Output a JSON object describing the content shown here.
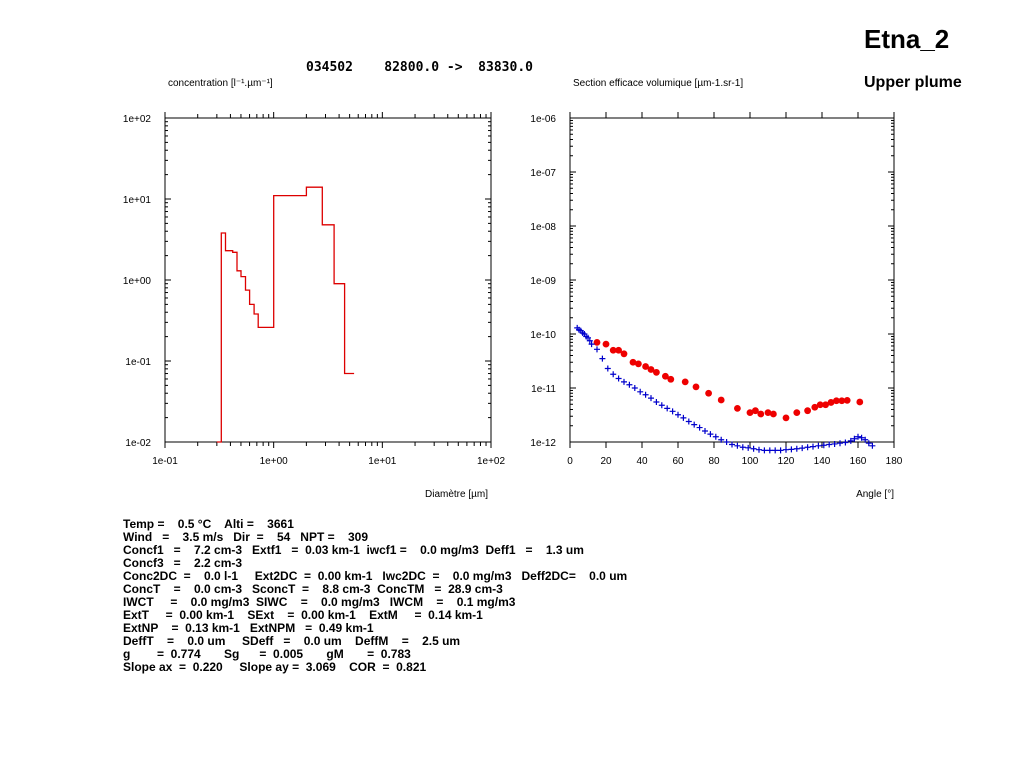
{
  "page": {
    "title": "Etna_2",
    "subtitle": "Upper plume",
    "header": "034502    82800.0 ->  83830.0"
  },
  "chart_data": [
    {
      "type": "line",
      "ytitle": "concentration [l⁻¹.µm⁻¹]",
      "xlabel": "Diamètre [µm]",
      "xscale": "log",
      "yscale": "log",
      "xlim": [
        0.1,
        100
      ],
      "ylim": [
        0.01,
        100
      ],
      "xticks": [
        "1e-01",
        "1e+00",
        "1e+01",
        "1e+02"
      ],
      "yticks": [
        "1e-02",
        "1e-01",
        "1e+00",
        "1e+01",
        "1e+02"
      ],
      "color": "#dd0000",
      "x": [
        0.3,
        0.33,
        0.33,
        0.36,
        0.36,
        0.42,
        0.42,
        0.46,
        0.46,
        0.5,
        0.5,
        0.55,
        0.55,
        0.6,
        0.6,
        0.66,
        0.66,
        0.72,
        0.72,
        1.0,
        1.0,
        2.0,
        2.0,
        2.8,
        2.8,
        3.6,
        3.6,
        4.5,
        4.5,
        5.5
      ],
      "y": [
        0.01,
        0.01,
        3.8,
        3.8,
        2.3,
        2.3,
        2.2,
        2.2,
        1.3,
        1.3,
        1.1,
        1.1,
        0.75,
        0.75,
        0.5,
        0.5,
        0.38,
        0.38,
        0.26,
        0.26,
        11,
        11,
        14,
        14,
        4.8,
        4.8,
        0.9,
        0.9,
        0.07,
        0.07
      ]
    },
    {
      "type": "scatter",
      "ytitle": "Section efficace volumique [µm-1.sr-1]",
      "xlabel": "Angle [°]",
      "xscale": "linear",
      "yscale": "log",
      "xlim": [
        0,
        180
      ],
      "ylim": [
        1e-12,
        1e-06
      ],
      "xticks": [
        "0",
        "20",
        "40",
        "60",
        "80",
        "100",
        "120",
        "140",
        "160",
        "180"
      ],
      "yticks": [
        "1e-12",
        "1e-11",
        "1e-10",
        "1e-09",
        "1e-08",
        "1e-07",
        "1e-06"
      ],
      "series": [
        {
          "marker": "dot",
          "color": "#ee0000",
          "x": [
            15,
            20,
            24,
            27,
            30,
            35,
            38,
            42,
            45,
            48,
            53,
            56,
            64,
            70,
            77,
            84,
            93,
            100,
            103,
            106,
            110,
            113,
            120,
            126,
            132,
            136,
            139,
            142,
            145,
            148,
            151,
            154,
            161
          ],
          "y": [
            7e-11,
            6.5e-11,
            5e-11,
            5e-11,
            4.3e-11,
            3e-11,
            2.8e-11,
            2.5e-11,
            2.2e-11,
            1.95e-11,
            1.65e-11,
            1.45e-11,
            1.3e-11,
            1.05e-11,
            8e-12,
            6e-12,
            4.2e-12,
            3.5e-12,
            3.8e-12,
            3.3e-12,
            3.5e-12,
            3.3e-12,
            2.8e-12,
            3.5e-12,
            3.8e-12,
            4.4e-12,
            4.9e-12,
            4.9e-12,
            5.4e-12,
            5.8e-12,
            5.8e-12,
            5.9e-12,
            5.5e-12
          ]
        },
        {
          "marker": "plus",
          "color": "#0000cc",
          "x": [
            4,
            5,
            6,
            7,
            8,
            9,
            10,
            11,
            12,
            15,
            18,
            21,
            24,
            27,
            30,
            33,
            36,
            39,
            42,
            45,
            48,
            51,
            54,
            57,
            60,
            63,
            66,
            69,
            72,
            75,
            78,
            81,
            84,
            87,
            90,
            93,
            96,
            99,
            102,
            105,
            108,
            111,
            114,
            117,
            120,
            123,
            126,
            129,
            132,
            135,
            138,
            141,
            144,
            147,
            150,
            153,
            156,
            158,
            160,
            162,
            164,
            166,
            168
          ],
          "y": [
            1.3e-10,
            1.2e-10,
            1.15e-10,
            1.05e-10,
            1e-10,
            9e-11,
            8.5e-11,
            7.5e-11,
            6.5e-11,
            5.2e-11,
            3.5e-11,
            2.3e-11,
            1.8e-11,
            1.5e-11,
            1.3e-11,
            1.15e-11,
            1e-11,
            8.5e-12,
            7.5e-12,
            6.5e-12,
            5.5e-12,
            4.8e-12,
            4.2e-12,
            3.7e-12,
            3.2e-12,
            2.8e-12,
            2.4e-12,
            2.1e-12,
            1.85e-12,
            1.6e-12,
            1.4e-12,
            1.25e-12,
            1.1e-12,
            1e-12,
            9e-13,
            8.5e-13,
            8e-13,
            7.8e-13,
            7.5e-13,
            7.2e-13,
            7e-13,
            7e-13,
            7e-13,
            7e-13,
            7.2e-13,
            7.3e-13,
            7.5e-13,
            7.7e-13,
            8e-13,
            8.2e-13,
            8.5e-13,
            8.7e-13,
            9e-13,
            9.2e-13,
            9.5e-13,
            9.8e-13,
            1.05e-12,
            1.15e-12,
            1.25e-12,
            1.2e-12,
            1.1e-12,
            9.5e-13,
            8.5e-13
          ]
        }
      ]
    }
  ],
  "stats": [
    "Temp =    0.5 °C    Alti =    3661",
    "Wind   =    3.5 m/s   Dir  =    54   NPT =    309",
    "Concf1   =    7.2 cm-3   Extf1   =  0.03 km-1  iwcf1 =    0.0 mg/m3  Deff1   =    1.3 um",
    "Concf3   =    2.2 cm-3",
    "Conc2DC  =    0.0 l-1     Ext2DC  =  0.00 km-1   Iwc2DC  =    0.0 mg/m3   Deff2DC=    0.0 um",
    "ConcT    =    0.0 cm-3   SconcT  =    8.8 cm-3  ConcTM   =  28.9 cm-3",
    "IWCT     =    0.0 mg/m3  SIWC    =    0.0 mg/m3   IWCM    =    0.1 mg/m3",
    "ExtT     =  0.00 km-1    SExt    =  0.00 km-1    ExtM     =  0.14 km-1",
    "ExtNP    =  0.13 km-1   ExtNPM   =  0.49 km-1",
    "DeffT    =    0.0 um     SDeff   =    0.0 um    DeffM    =    2.5 um",
    "g        =  0.774       Sg      =  0.005       gM       =  0.783",
    "Slope ax  =  0.220     Slope ay =  3.069    COR  =  0.821"
  ]
}
